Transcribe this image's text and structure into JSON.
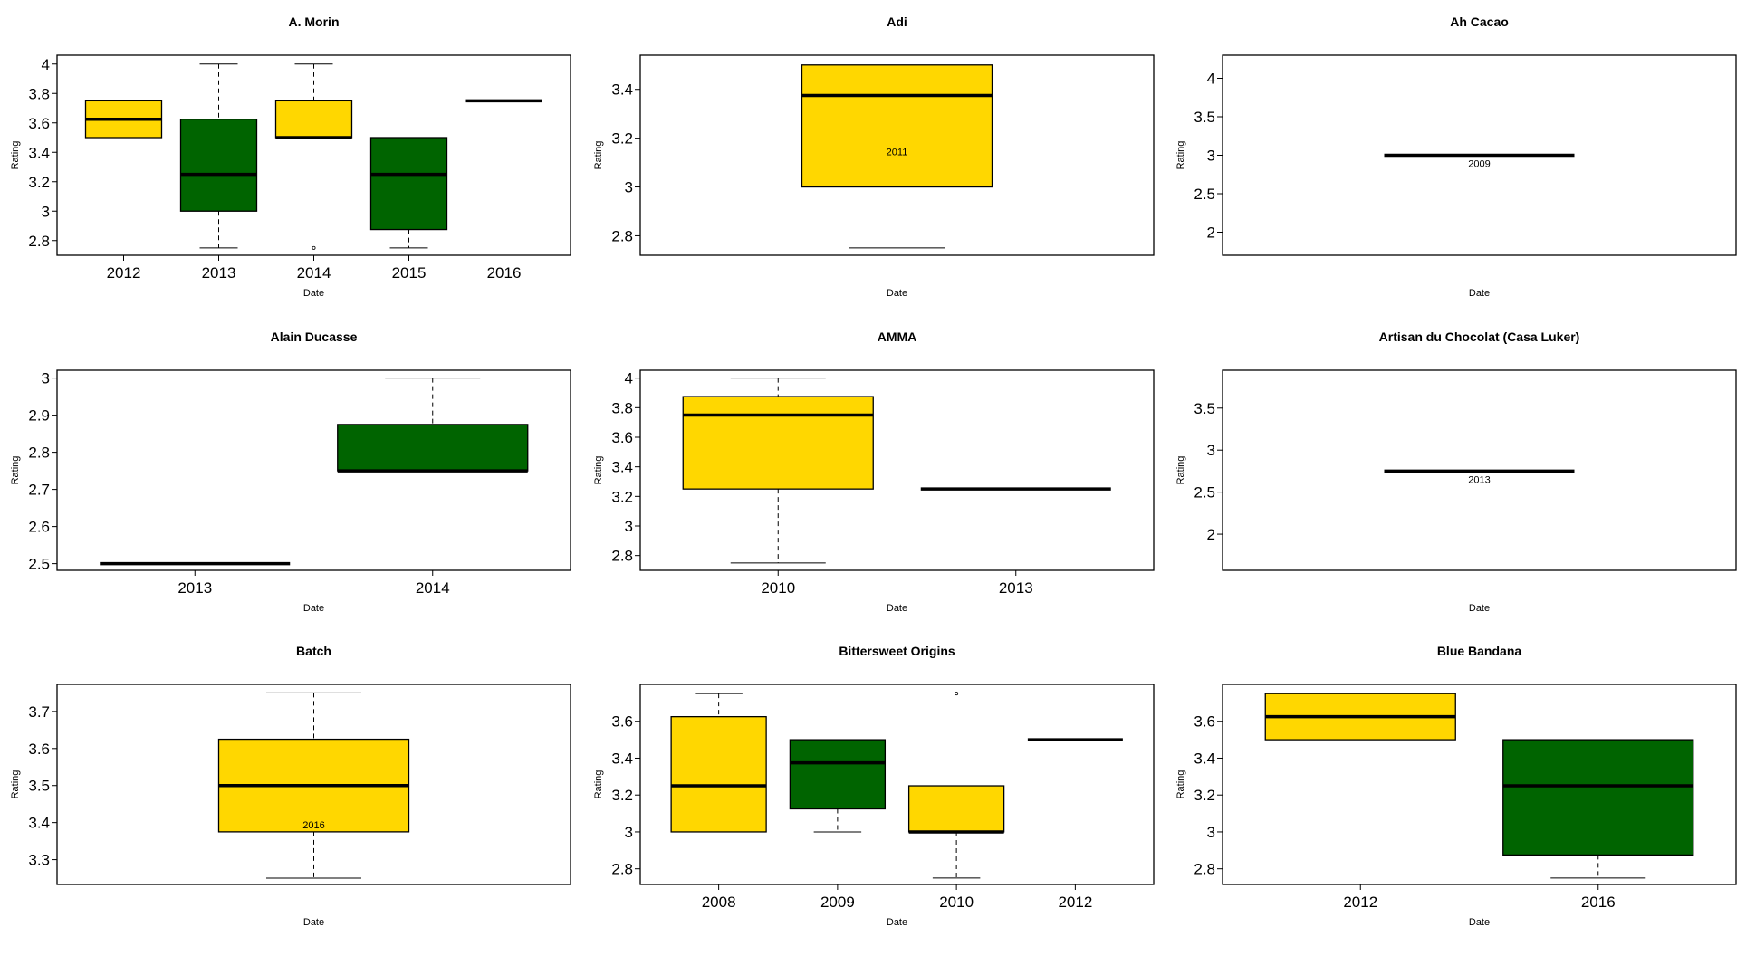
{
  "colors": {
    "gold": "#FFD700",
    "green": "#006400",
    "median": "#000000",
    "frame": "#000000"
  },
  "chart_data": [
    {
      "type": "box",
      "title": "A. Morin",
      "xlabel": "Date",
      "ylabel": "Rating",
      "ylim": [
        2.7,
        4.06
      ],
      "yticks": [
        2.8,
        3.0,
        3.2,
        3.4,
        3.6,
        3.8,
        4.0
      ],
      "groups": [
        {
          "label": "2012",
          "q1": 3.5,
          "median": 3.625,
          "q3": 3.75,
          "lo": 3.5,
          "hi": 3.75,
          "outliers": [],
          "color": "gold"
        },
        {
          "label": "2013",
          "q1": 3.0,
          "median": 3.25,
          "q3": 3.625,
          "lo": 2.75,
          "hi": 4.0,
          "outliers": [],
          "color": "green"
        },
        {
          "label": "2014",
          "q1": 3.5,
          "median": 3.5,
          "q3": 3.75,
          "lo": 3.5,
          "hi": 4.0,
          "outliers": [
            2.75
          ],
          "color": "gold"
        },
        {
          "label": "2015",
          "q1": 2.875,
          "median": 3.25,
          "q3": 3.5,
          "lo": 2.75,
          "hi": 3.5,
          "outliers": [],
          "color": "green"
        },
        {
          "label": "2016",
          "q1": 3.75,
          "median": 3.75,
          "q3": 3.75,
          "lo": 3.75,
          "hi": 3.75,
          "outliers": [],
          "color": "gold"
        }
      ]
    },
    {
      "type": "box",
      "title": "Adi",
      "xlabel": "Date",
      "ylabel": "Rating",
      "ylim": [
        2.72,
        3.54
      ],
      "yticks": [
        2.8,
        3.0,
        3.2,
        3.4
      ],
      "groups": [
        {
          "label": "2011",
          "q1": 3.0,
          "median": 3.375,
          "q3": 3.5,
          "lo": 2.75,
          "hi": 3.5,
          "outliers": [],
          "color": "gold"
        }
      ]
    },
    {
      "type": "box",
      "title": "Ah Cacao",
      "xlabel": "Date",
      "ylabel": "Rating",
      "ylim": [
        1.7,
        4.3
      ],
      "yticks": [
        2.0,
        2.5,
        3.0,
        3.5,
        4.0
      ],
      "groups": [
        {
          "label": "2009",
          "q1": 3.0,
          "median": 3.0,
          "q3": 3.0,
          "lo": 3.0,
          "hi": 3.0,
          "outliers": [],
          "color": "gold"
        }
      ]
    },
    {
      "type": "box",
      "title": "Alain Ducasse",
      "xlabel": "Date",
      "ylabel": "Rating",
      "ylim": [
        2.482,
        3.021
      ],
      "yticks": [
        2.5,
        2.6,
        2.7,
        2.8,
        2.9,
        3.0
      ],
      "groups": [
        {
          "label": "2013",
          "q1": 2.5,
          "median": 2.5,
          "q3": 2.5,
          "lo": 2.5,
          "hi": 2.5,
          "outliers": [],
          "color": "gold"
        },
        {
          "label": "2014",
          "q1": 2.75,
          "median": 2.75,
          "q3": 2.875,
          "lo": 2.75,
          "hi": 3.0,
          "outliers": [],
          "color": "green"
        }
      ]
    },
    {
      "type": "box",
      "title": "AMMA",
      "xlabel": "Date",
      "ylabel": "Rating",
      "ylim": [
        2.7,
        4.053
      ],
      "yticks": [
        2.8,
        3.0,
        3.2,
        3.4,
        3.6,
        3.8,
        4.0
      ],
      "groups": [
        {
          "label": "2010",
          "q1": 3.25,
          "median": 3.75,
          "q3": 3.875,
          "lo": 2.75,
          "hi": 4.0,
          "outliers": [],
          "color": "gold"
        },
        {
          "label": "2013",
          "q1": 3.25,
          "median": 3.25,
          "q3": 3.25,
          "lo": 3.25,
          "hi": 3.25,
          "outliers": [],
          "color": "green"
        }
      ]
    },
    {
      "type": "box",
      "title": "Artisan du Chocolat (Casa Luker)",
      "xlabel": "Date",
      "ylabel": "Rating",
      "ylim": [
        1.57,
        3.95
      ],
      "yticks": [
        2.0,
        2.5,
        3.0,
        3.5
      ],
      "groups": [
        {
          "label": "2013",
          "q1": 2.75,
          "median": 2.75,
          "q3": 2.75,
          "lo": 2.75,
          "hi": 2.75,
          "outliers": [],
          "color": "gold"
        }
      ]
    },
    {
      "type": "box",
      "title": "Batch",
      "xlabel": "Date",
      "ylabel": "Rating",
      "ylim": [
        3.233,
        3.773
      ],
      "yticks": [
        3.3,
        3.4,
        3.5,
        3.6,
        3.7
      ],
      "groups": [
        {
          "label": "2016",
          "q1": 3.375,
          "median": 3.5,
          "q3": 3.625,
          "lo": 3.25,
          "hi": 3.75,
          "outliers": [],
          "color": "gold"
        }
      ]
    },
    {
      "type": "box",
      "title": "Bittersweet Origins",
      "xlabel": "Date",
      "ylabel": "Rating",
      "ylim": [
        2.715,
        3.8
      ],
      "yticks": [
        2.8,
        3.0,
        3.2,
        3.4,
        3.6
      ],
      "groups": [
        {
          "label": "2008",
          "q1": 3.0,
          "median": 3.25,
          "q3": 3.625,
          "lo": 3.0,
          "hi": 3.75,
          "outliers": [],
          "color": "gold"
        },
        {
          "label": "2009",
          "q1": 3.125,
          "median": 3.375,
          "q3": 3.5,
          "lo": 3.0,
          "hi": 3.5,
          "outliers": [],
          "color": "green"
        },
        {
          "label": "2010",
          "q1": 3.0,
          "median": 3.0,
          "q3": 3.25,
          "lo": 2.75,
          "hi": 3.25,
          "outliers": [
            3.75
          ],
          "color": "gold"
        },
        {
          "label": "2012",
          "q1": 3.5,
          "median": 3.5,
          "q3": 3.5,
          "lo": 3.5,
          "hi": 3.5,
          "outliers": [],
          "color": "green"
        }
      ]
    },
    {
      "type": "box",
      "title": "Blue Bandana",
      "xlabel": "Date",
      "ylabel": "Rating",
      "ylim": [
        2.715,
        3.8
      ],
      "yticks": [
        2.8,
        3.0,
        3.2,
        3.4,
        3.6
      ],
      "groups": [
        {
          "label": "2012",
          "q1": 3.5,
          "median": 3.625,
          "q3": 3.75,
          "lo": 3.5,
          "hi": 3.75,
          "outliers": [],
          "color": "gold"
        },
        {
          "label": "2016",
          "q1": 2.875,
          "median": 3.25,
          "q3": 3.5,
          "lo": 2.75,
          "hi": 3.5,
          "outliers": [],
          "color": "green"
        }
      ]
    }
  ]
}
